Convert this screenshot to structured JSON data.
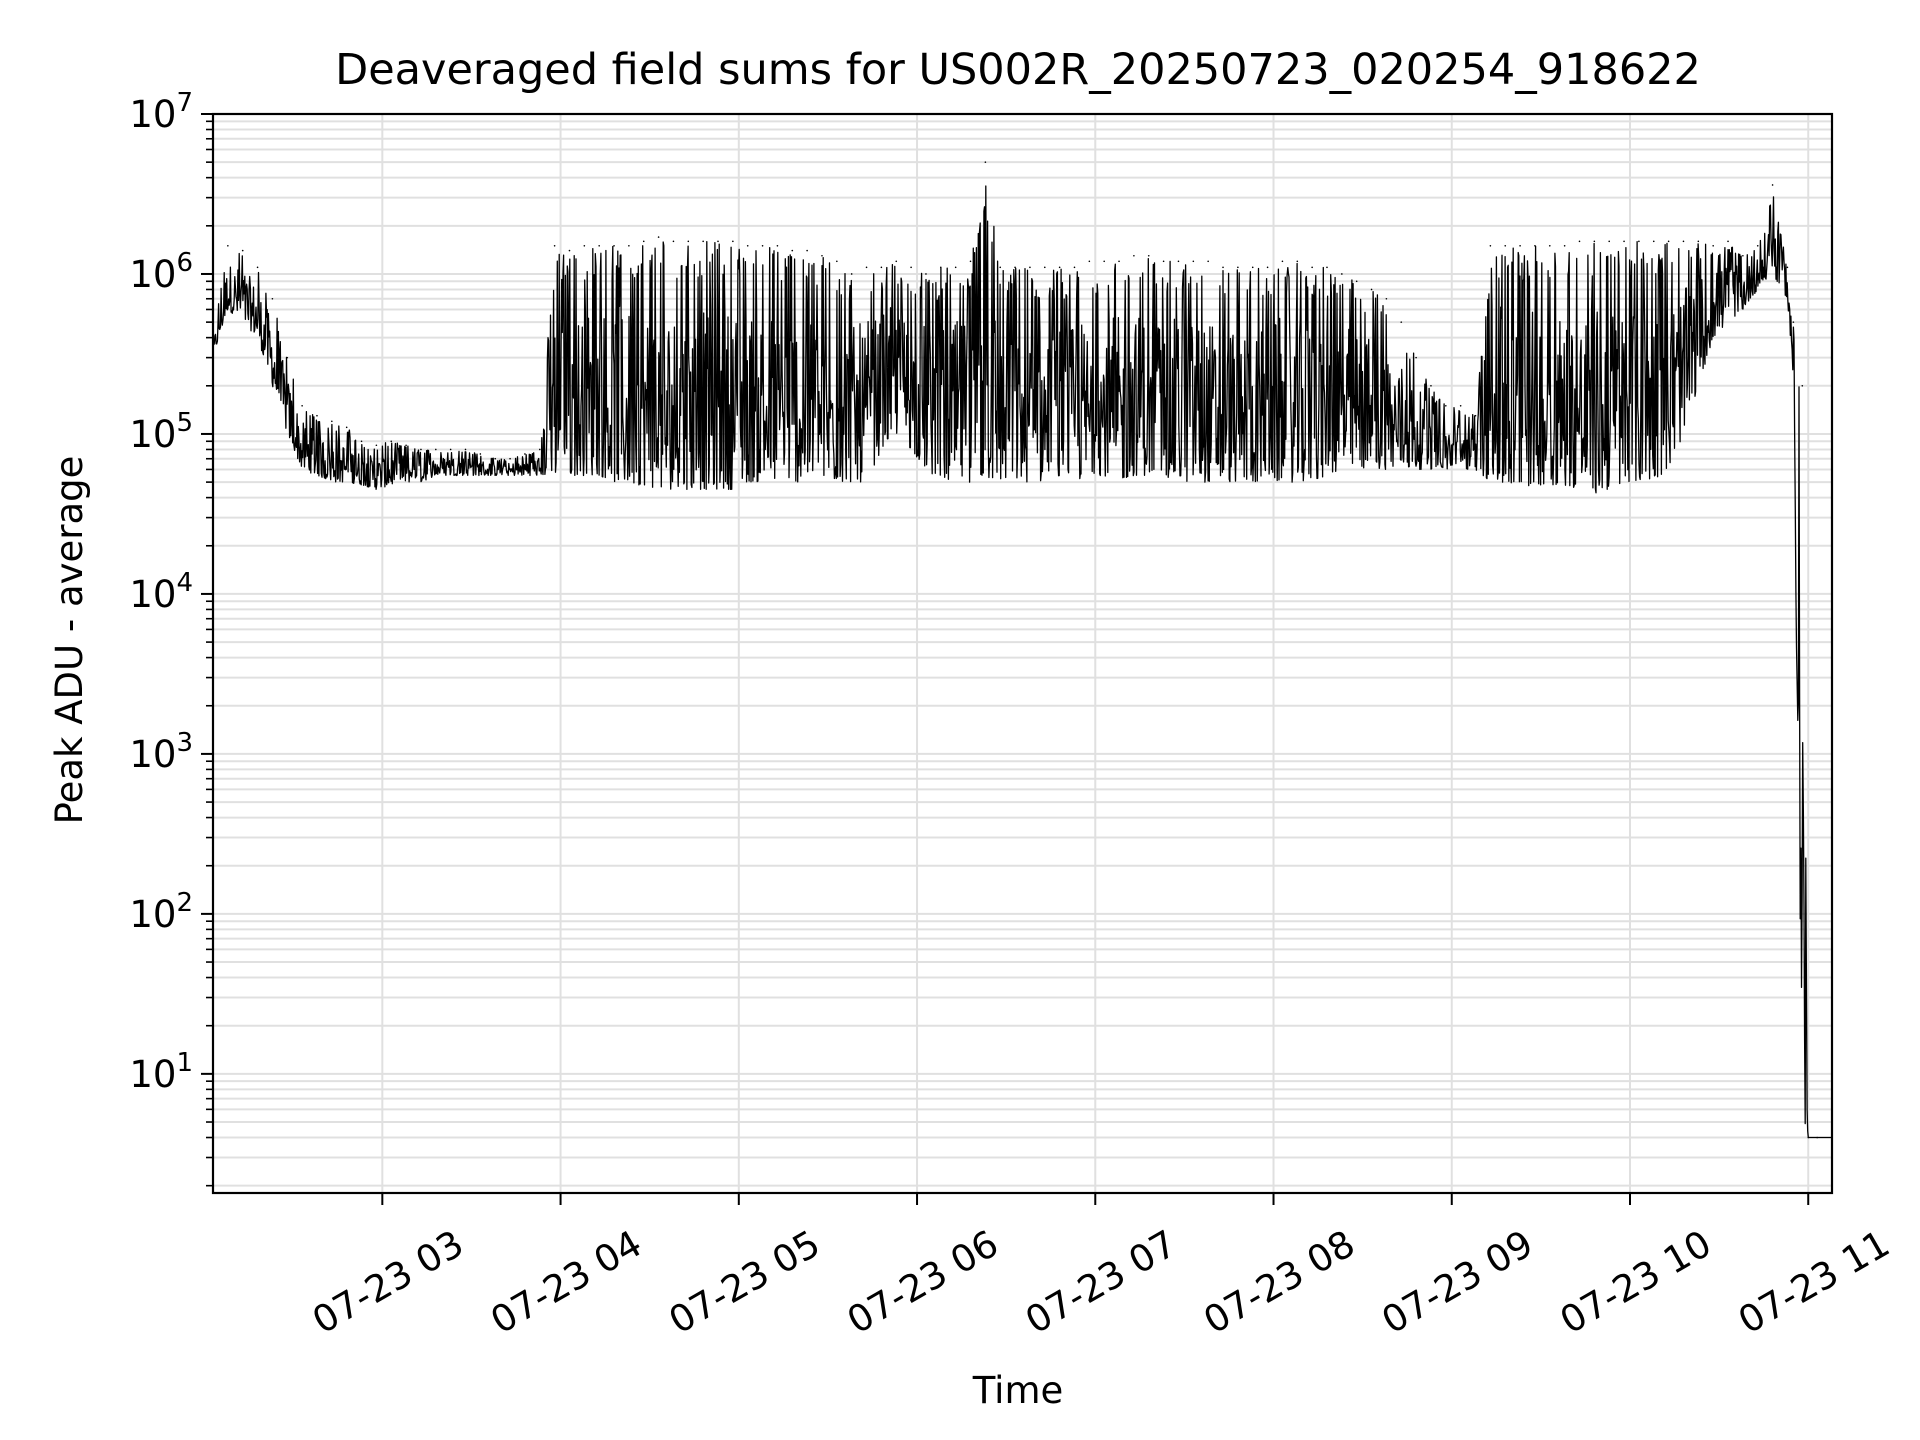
{
  "chart_data": {
    "type": "line",
    "title": "Deaveraged field sums for US002R_20250723_020254_918622",
    "xlabel": "Time",
    "ylabel": "Peak ADU - average",
    "yscale": "log",
    "ylim": [
      1.8,
      10000000
    ],
    "xlim": [
      "07-23 02:03",
      "07-23 11:08"
    ],
    "grid": true,
    "line_color": "#000000",
    "grid_color": "#e0e0e0",
    "x_ticks": [
      {
        "label": "07-23 03",
        "value": "07-23 03:00"
      },
      {
        "label": "07-23 04",
        "value": "07-23 04:00"
      },
      {
        "label": "07-23 05",
        "value": "07-23 05:00"
      },
      {
        "label": "07-23 06",
        "value": "07-23 06:00"
      },
      {
        "label": "07-23 07",
        "value": "07-23 07:00"
      },
      {
        "label": "07-23 08",
        "value": "07-23 08:00"
      },
      {
        "label": "07-23 09",
        "value": "07-23 09:00"
      },
      {
        "label": "07-23 10",
        "value": "07-23 10:00"
      },
      {
        "label": "07-23 11",
        "value": "07-23 11:00"
      }
    ],
    "y_ticks": [
      {
        "base": "10",
        "exp": "1",
        "value": 10
      },
      {
        "base": "10",
        "exp": "2",
        "value": 100
      },
      {
        "base": "10",
        "exp": "3",
        "value": 1000
      },
      {
        "base": "10",
        "exp": "4",
        "value": 10000
      },
      {
        "base": "10",
        "exp": "5",
        "value": 100000
      },
      {
        "base": "10",
        "exp": "6",
        "value": 1000000
      },
      {
        "base": "10",
        "exp": "7",
        "value": 10000000
      }
    ],
    "series": [
      {
        "x": [
          "07-23 02:03",
          "07-23 02:08",
          "07-23 02:13",
          "07-23 02:18",
          "07-23 02:23",
          "07-23 02:28",
          "07-23 02:33",
          "07-23 02:38",
          "07-23 02:43",
          "07-23 02:48",
          "07-23 02:53",
          "07-23 02:58",
          "07-23 03:03",
          "07-23 03:08",
          "07-23 03:13",
          "07-23 03:18",
          "07-23 03:23",
          "07-23 03:28",
          "07-23 03:33",
          "07-23 03:38",
          "07-23 03:43",
          "07-23 03:48",
          "07-23 03:53",
          "07-23 03:58",
          "07-23 04:03",
          "07-23 04:08",
          "07-23 04:13",
          "07-23 04:18",
          "07-23 04:23",
          "07-23 04:28",
          "07-23 04:33",
          "07-23 04:38",
          "07-23 04:43",
          "07-23 04:48",
          "07-23 04:53",
          "07-23 04:58",
          "07-23 05:03",
          "07-23 05:08",
          "07-23 05:13",
          "07-23 05:18",
          "07-23 05:23",
          "07-23 05:28",
          "07-23 05:33",
          "07-23 05:38",
          "07-23 05:43",
          "07-23 05:48",
          "07-23 05:53",
          "07-23 05:58",
          "07-23 06:03",
          "07-23 06:08",
          "07-23 06:13",
          "07-23 06:18",
          "07-23 06:23",
          "07-23 06:28",
          "07-23 06:33",
          "07-23 06:38",
          "07-23 06:43",
          "07-23 06:48",
          "07-23 06:53",
          "07-23 06:58",
          "07-23 07:03",
          "07-23 07:08",
          "07-23 07:13",
          "07-23 07:18",
          "07-23 07:23",
          "07-23 07:28",
          "07-23 07:33",
          "07-23 07:38",
          "07-23 07:43",
          "07-23 07:48",
          "07-23 07:53",
          "07-23 07:58",
          "07-23 08:03",
          "07-23 08:08",
          "07-23 08:13",
          "07-23 08:18",
          "07-23 08:23",
          "07-23 08:28",
          "07-23 08:33",
          "07-23 08:38",
          "07-23 08:43",
          "07-23 08:48",
          "07-23 08:53",
          "07-23 08:58",
          "07-23 09:03",
          "07-23 09:08",
          "07-23 09:13",
          "07-23 09:18",
          "07-23 09:23",
          "07-23 09:28",
          "07-23 09:33",
          "07-23 09:38",
          "07-23 09:43",
          "07-23 09:48",
          "07-23 09:53",
          "07-23 09:58",
          "07-23 10:03",
          "07-23 10:08",
          "07-23 10:13",
          "07-23 10:18",
          "07-23 10:23",
          "07-23 10:28",
          "07-23 10:33",
          "07-23 10:38",
          "07-23 10:43",
          "07-23 10:48",
          "07-23 10:53",
          "07-23 10:55",
          "07-23 10:58",
          "07-23 11:00",
          "07-23 11:03",
          "07-23 11:08"
        ],
        "y_high": [
          400000,
          1500000,
          1400000,
          1100000,
          700000,
          300000,
          150000,
          130000,
          120000,
          110000,
          90000,
          85000,
          90000,
          85000,
          80000,
          80000,
          80000,
          80000,
          75000,
          70000,
          70000,
          75000,
          80000,
          1500000,
          1400000,
          1500000,
          1500000,
          1500000,
          1500000,
          1600000,
          1700000,
          1600000,
          1600000,
          1600000,
          1600000,
          1600000,
          1500000,
          1500000,
          1500000,
          1400000,
          1400000,
          1300000,
          1200000,
          1000000,
          1100000,
          1100000,
          1200000,
          1100000,
          1000000,
          1100000,
          1100000,
          1200000,
          5000000,
          1100000,
          1100000,
          1100000,
          1100000,
          1100000,
          1100000,
          1200000,
          1200000,
          1200000,
          1300000,
          1300000,
          1200000,
          1200000,
          1200000,
          1200000,
          1100000,
          1100000,
          1100000,
          1100000,
          1200000,
          1200000,
          1100000,
          1100000,
          1000000,
          900000,
          800000,
          700000,
          500000,
          300000,
          200000,
          150000,
          150000,
          130000,
          1500000,
          1500000,
          1500000,
          1500000,
          1500000,
          1500000,
          1600000,
          1600000,
          1600000,
          1600000,
          1600000,
          1600000,
          1600000,
          1600000,
          1600000,
          1500000,
          1600000,
          1300000,
          1500000,
          3600000,
          1100000,
          500000,
          200000,
          4,
          4,
          4
        ],
        "y_low": [
          300000,
          600000,
          500000,
          400000,
          200000,
          100000,
          60000,
          55000,
          50000,
          50000,
          48000,
          45000,
          48000,
          50000,
          50000,
          55000,
          55000,
          55000,
          55000,
          55000,
          55000,
          55000,
          55000,
          55000,
          55000,
          55000,
          55000,
          50000,
          48000,
          48000,
          45000,
          45000,
          45000,
          45000,
          45000,
          45000,
          50000,
          50000,
          50000,
          50000,
          50000,
          50000,
          50000,
          50000,
          50000,
          80000,
          100000,
          80000,
          60000,
          50000,
          50000,
          50000,
          50000,
          50000,
          50000,
          50000,
          50000,
          50000,
          50000,
          55000,
          55000,
          50000,
          55000,
          55000,
          55000,
          50000,
          50000,
          50000,
          50000,
          50000,
          50000,
          50000,
          50000,
          50000,
          50000,
          55000,
          60000,
          60000,
          60000,
          60000,
          60000,
          60000,
          60000,
          60000,
          60000,
          60000,
          50000,
          45000,
          45000,
          48000,
          48000,
          48000,
          45000,
          42000,
          45000,
          48000,
          50000,
          52000,
          60000,
          100000,
          200000,
          400000,
          500000,
          600000,
          800000,
          1000000,
          700000,
          200000,
          4,
          4,
          4,
          4
        ]
      }
    ]
  }
}
